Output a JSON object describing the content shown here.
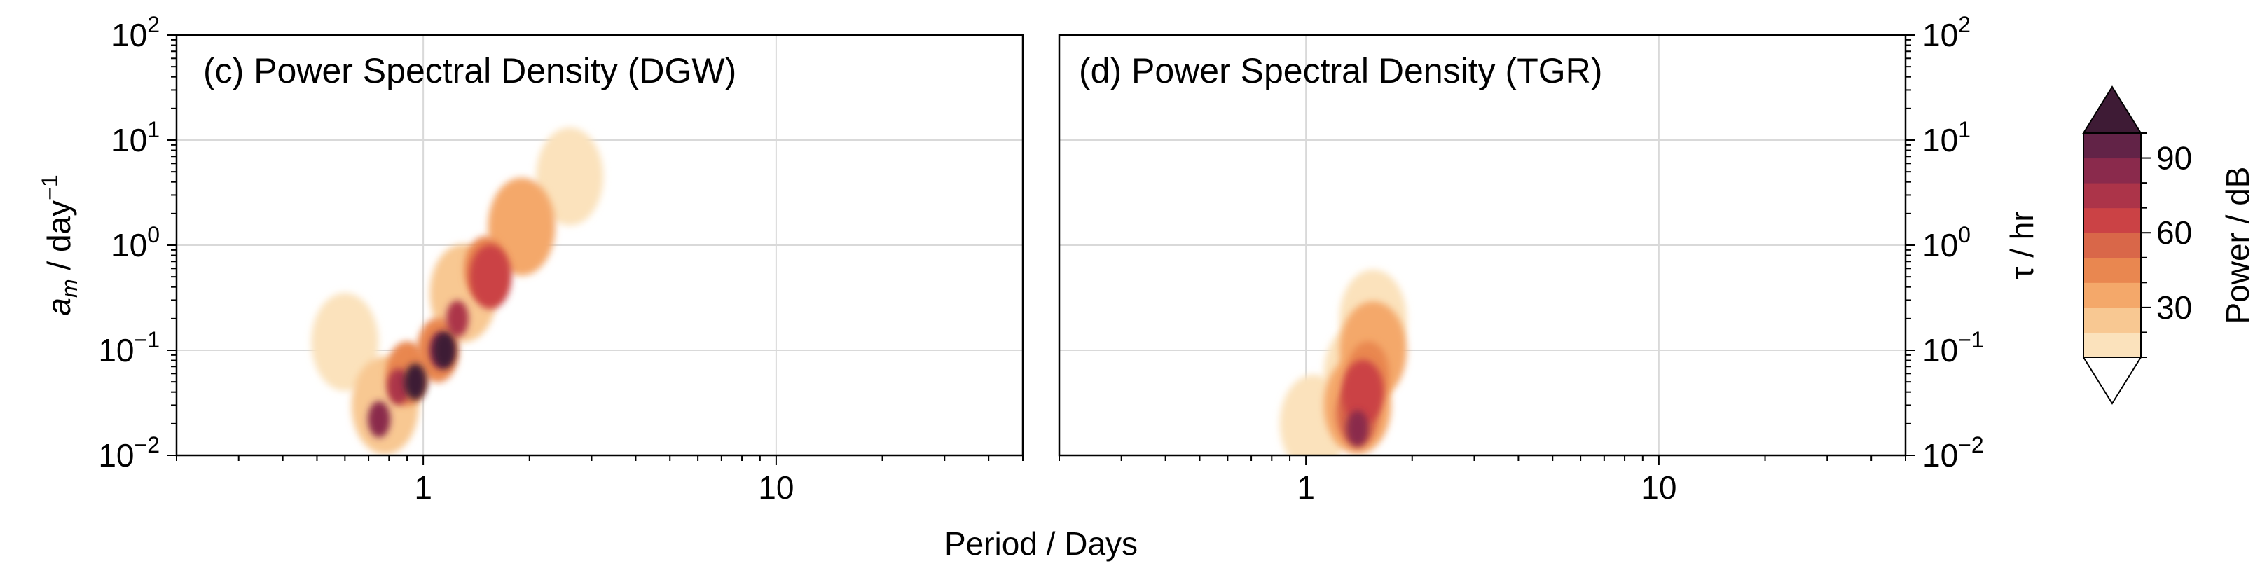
{
  "figure": {
    "xlabel": "Period / Days",
    "left_ylabel_main": "a",
    "left_ylabel_sub": "m",
    "left_ylabel_rest": " / day",
    "left_ylabel_sup": "−1",
    "right_ylabel": "τ / hr",
    "colorbar_label": "Power / dB"
  },
  "chart_data": [
    {
      "type": "heatmap",
      "title": "(c) Power Spectral Density (DGW)",
      "xlabel": "Period / Days",
      "ylabel": "a_m / day^-1",
      "x_scale": "log",
      "y_scale": "log",
      "xlim": [
        0.2,
        50
      ],
      "ylim": [
        0.01,
        100
      ],
      "x_ticks": [
        {
          "value": 1,
          "label": "1"
        },
        {
          "value": 10,
          "label": "10"
        }
      ],
      "y_ticks": [
        {
          "value": 0.01,
          "base": "10",
          "exp": "−2"
        },
        {
          "value": 0.1,
          "base": "10",
          "exp": "−1"
        },
        {
          "value": 1,
          "base": "10",
          "exp": "0"
        },
        {
          "value": 10,
          "base": "10",
          "exp": "1"
        },
        {
          "value": 100,
          "base": "10",
          "exp": "2"
        }
      ],
      "grid": true,
      "blobs": [
        {
          "period": 0.78,
          "value": 0.03,
          "power": 20
        },
        {
          "period": 1.3,
          "value": 0.35,
          "power": 20
        },
        {
          "period": 2.6,
          "value": 4.5,
          "power": 10
        },
        {
          "period": 0.6,
          "value": 0.12,
          "power": 10
        },
        {
          "period": 0.9,
          "value": 0.06,
          "power": 40
        },
        {
          "period": 1.1,
          "value": 0.1,
          "power": 40
        },
        {
          "period": 1.5,
          "value": 0.6,
          "power": 40
        },
        {
          "period": 1.9,
          "value": 1.5,
          "power": 30
        },
        {
          "period": 0.85,
          "value": 0.045,
          "power": 70
        },
        {
          "period": 1.12,
          "value": 0.1,
          "power": 80
        },
        {
          "period": 1.25,
          "value": 0.2,
          "power": 70
        },
        {
          "period": 1.55,
          "value": 0.5,
          "power": 60
        },
        {
          "period": 0.75,
          "value": 0.022,
          "power": 80
        },
        {
          "period": 0.95,
          "value": 0.05,
          "power": 100
        },
        {
          "period": 1.15,
          "value": 0.1,
          "power": 100
        }
      ]
    },
    {
      "type": "heatmap",
      "title": "(d) Power Spectral Density (TGR)",
      "xlabel": "Period / Days",
      "ylabel": "τ / hr",
      "x_scale": "log",
      "y_scale": "log",
      "xlim": [
        0.2,
        50
      ],
      "ylim": [
        0.01,
        100
      ],
      "x_ticks": [
        {
          "value": 1,
          "label": "1"
        },
        {
          "value": 10,
          "label": "10"
        }
      ],
      "y_ticks": [
        {
          "value": 0.01,
          "base": "10",
          "exp": "−2"
        },
        {
          "value": 0.1,
          "base": "10",
          "exp": "−1"
        },
        {
          "value": 1,
          "base": "10",
          "exp": "0"
        },
        {
          "value": 10,
          "base": "10",
          "exp": "1"
        },
        {
          "value": 100,
          "base": "10",
          "exp": "2"
        }
      ],
      "grid": true,
      "blobs": [
        {
          "period": 1.05,
          "value": 0.02,
          "power": 10
        },
        {
          "period": 1.4,
          "value": 0.06,
          "power": 10
        },
        {
          "period": 1.55,
          "value": 0.2,
          "power": 10
        },
        {
          "period": 1.4,
          "value": 0.03,
          "power": 30
        },
        {
          "period": 1.55,
          "value": 0.1,
          "power": 30
        },
        {
          "period": 1.4,
          "value": 0.025,
          "power": 50
        },
        {
          "period": 1.5,
          "value": 0.06,
          "power": 40
        },
        {
          "period": 1.4,
          "value": 0.018,
          "power": 80
        },
        {
          "period": 1.45,
          "value": 0.04,
          "power": 60
        }
      ]
    }
  ],
  "colorbar": {
    "label": "Power / dB",
    "extend": "both",
    "levels": [
      10,
      20,
      30,
      40,
      50,
      60,
      70,
      80,
      90,
      100
    ],
    "colors": [
      "#fbe2bc",
      "#f8c892",
      "#f4a86a",
      "#e98750",
      "#d96749",
      "#cb4245",
      "#ac3449",
      "#8a2a4c",
      "#622347"
    ],
    "over_color": "#3e1b35",
    "under_color": "#ffffff",
    "ticks": [
      {
        "value": 30,
        "label": "30"
      },
      {
        "value": 60,
        "label": "60"
      },
      {
        "value": 90,
        "label": "90"
      }
    ]
  }
}
